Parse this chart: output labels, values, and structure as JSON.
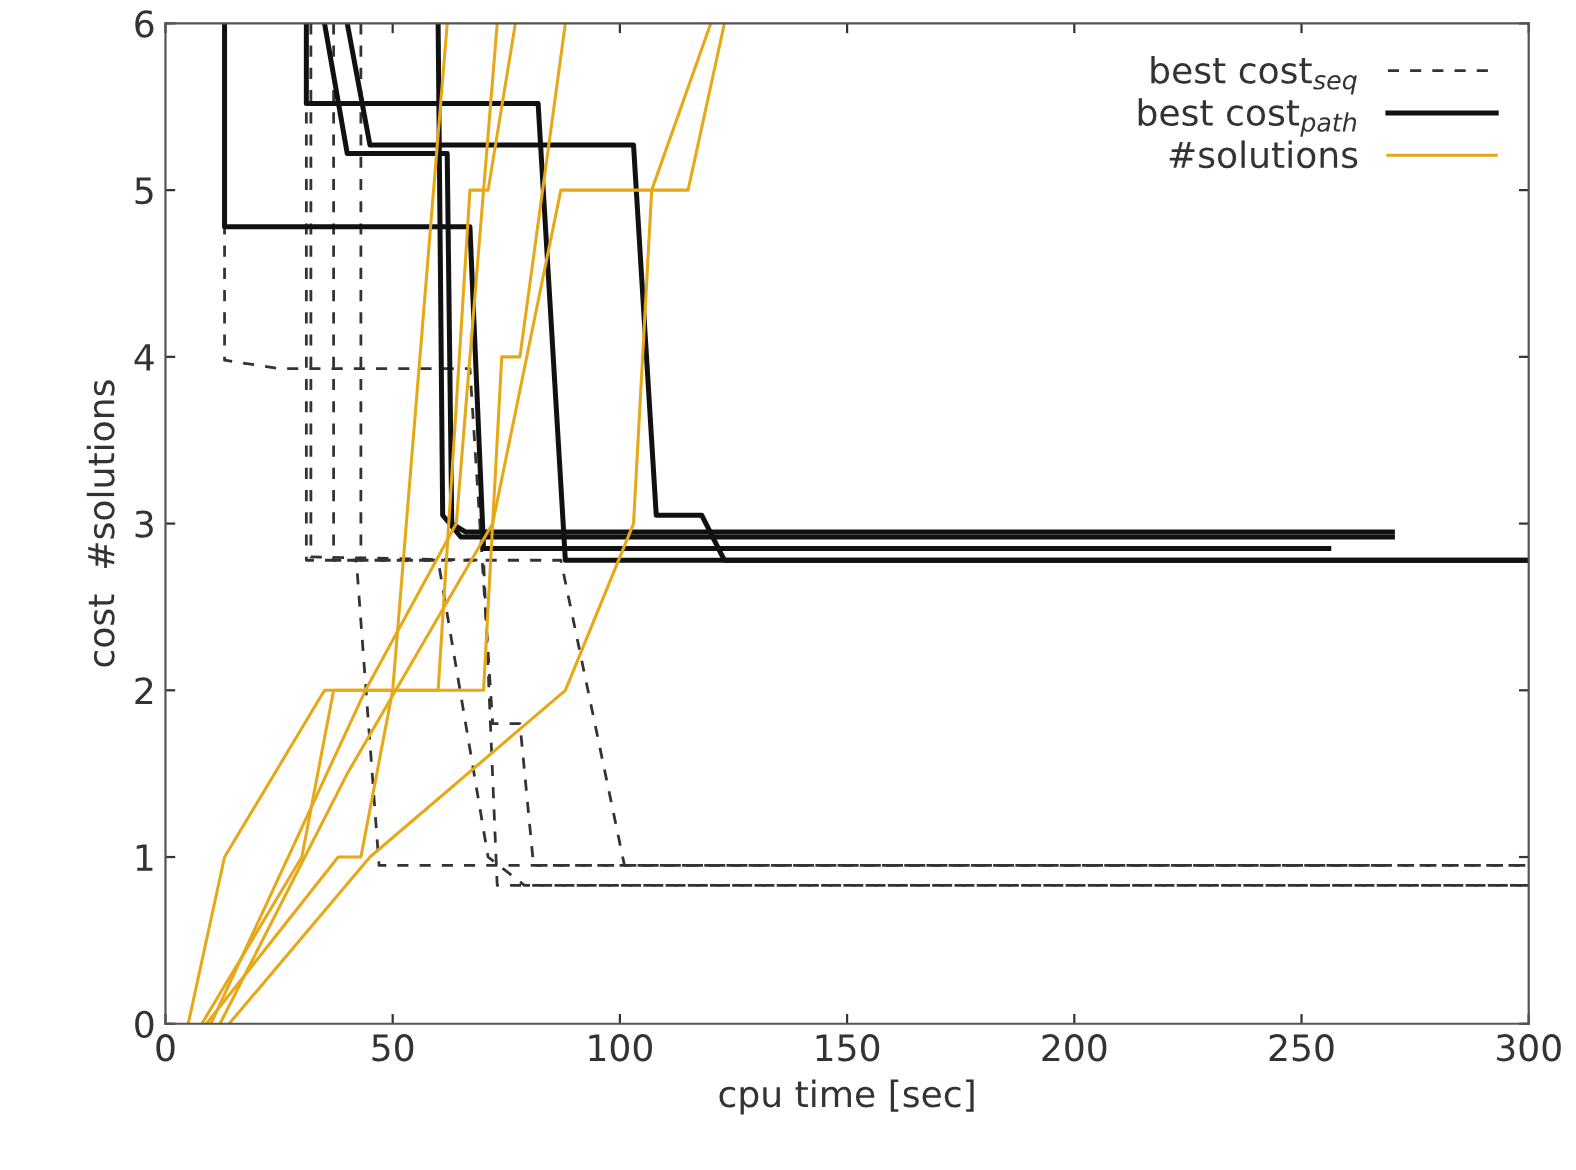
{
  "chart_data": {
    "type": "line",
    "xlabel": "cpu time [sec]",
    "ylabel": "cost  #solutions",
    "xlim": [
      0,
      300
    ],
    "ylim": [
      0,
      6
    ],
    "xticks": [
      0,
      50,
      100,
      150,
      200,
      250,
      300
    ],
    "yticks": [
      0,
      1,
      2,
      3,
      4,
      5,
      6
    ],
    "grid": false,
    "legend": "top right",
    "marker": "none",
    "series": [
      {
        "name": "best cost$_{seq}$",
        "color": "#333333",
        "line_style": "dashed",
        "x": [
          13,
          13,
          25,
          67,
          72,
          78,
          81,
          300
        ],
        "values": [
          6,
          3.98,
          3.93,
          3.93,
          1.8,
          1.8,
          0.95,
          0.95
        ]
      },
      {
        "color": "#333333",
        "line_style": "dashed",
        "x": [
          31,
          31,
          42,
          47,
          300
        ],
        "values": [
          6,
          2.78,
          2.78,
          0.95,
          0.95
        ]
      },
      {
        "color": "#333333",
        "line_style": "dashed",
        "x": [
          32,
          32,
          70,
          73,
          300
        ],
        "values": [
          6,
          2.8,
          2.78,
          0.83,
          0.83
        ]
      },
      {
        "color": "#333333",
        "line_style": "dashed",
        "x": [
          37,
          37,
          87,
          101,
          270
        ],
        "values": [
          6,
          2.78,
          2.78,
          0.95,
          0.95
        ]
      },
      {
        "color": "#333333",
        "line_style": "dashed",
        "x": [
          43,
          43,
          60,
          71,
          79,
          300
        ],
        "values": [
          6,
          2.78,
          2.78,
          1.0,
          0.83,
          0.83
        ]
      },
      {
        "name": "best cost$_{path}$",
        "color": "#111111",
        "line_style": "solid",
        "x": [
          13,
          13,
          67,
          70,
          256
        ],
        "values": [
          6,
          4.78,
          4.78,
          2.85,
          2.85
        ]
      },
      {
        "color": "#111111",
        "line_style": "solid",
        "x": [
          31,
          31,
          82,
          88,
          300
        ],
        "values": [
          6,
          5.52,
          5.52,
          2.78,
          2.78
        ]
      },
      {
        "color": "#111111",
        "line_style": "solid",
        "x": [
          35,
          40,
          62,
          63,
          66,
          270
        ],
        "values": [
          6,
          5.22,
          5.22,
          3.0,
          2.95,
          2.95
        ]
      },
      {
        "color": "#111111",
        "line_style": "solid",
        "x": [
          40,
          45,
          103,
          108,
          118,
          123,
          300
        ],
        "values": [
          6,
          5.27,
          5.27,
          3.05,
          3.05,
          2.78,
          2.78
        ]
      },
      {
        "color": "#111111",
        "line_style": "solid",
        "x": [
          60,
          61,
          65,
          270
        ],
        "values": [
          6,
          3.05,
          2.92,
          2.92
        ]
      },
      {
        "name": "#solutions",
        "color": "#e6a817",
        "line_style": "solid",
        "x": [
          5,
          13,
          35,
          60,
          67,
          71,
          77
        ],
        "values": [
          0,
          1,
          2,
          2,
          5,
          5,
          6
        ]
      },
      {
        "color": "#e6a817",
        "line_style": "solid",
        "x": [
          8,
          30,
          37,
          70,
          74,
          78,
          88
        ],
        "values": [
          0,
          1,
          2,
          2,
          4,
          4,
          6
        ]
      },
      {
        "color": "#e6a817",
        "line_style": "solid",
        "x": [
          9,
          38,
          43,
          50,
          62
        ],
        "values": [
          0,
          1,
          1,
          2,
          6
        ]
      },
      {
        "color": "#e6a817",
        "line_style": "solid",
        "x": [
          10,
          44,
          64,
          73
        ],
        "values": [
          0,
          2,
          3,
          6
        ]
      },
      {
        "color": "#e6a817",
        "line_style": "solid",
        "x": [
          14,
          45,
          88,
          103,
          107,
          115,
          123
        ],
        "values": [
          0,
          1,
          2,
          3,
          5,
          5,
          6
        ]
      },
      {
        "color": "#e6a817",
        "line_style": "solid",
        "x": [
          12,
          40,
          72,
          87,
          107,
          120
        ],
        "values": [
          0,
          1.5,
          3,
          5,
          5,
          6
        ]
      }
    ]
  }
}
